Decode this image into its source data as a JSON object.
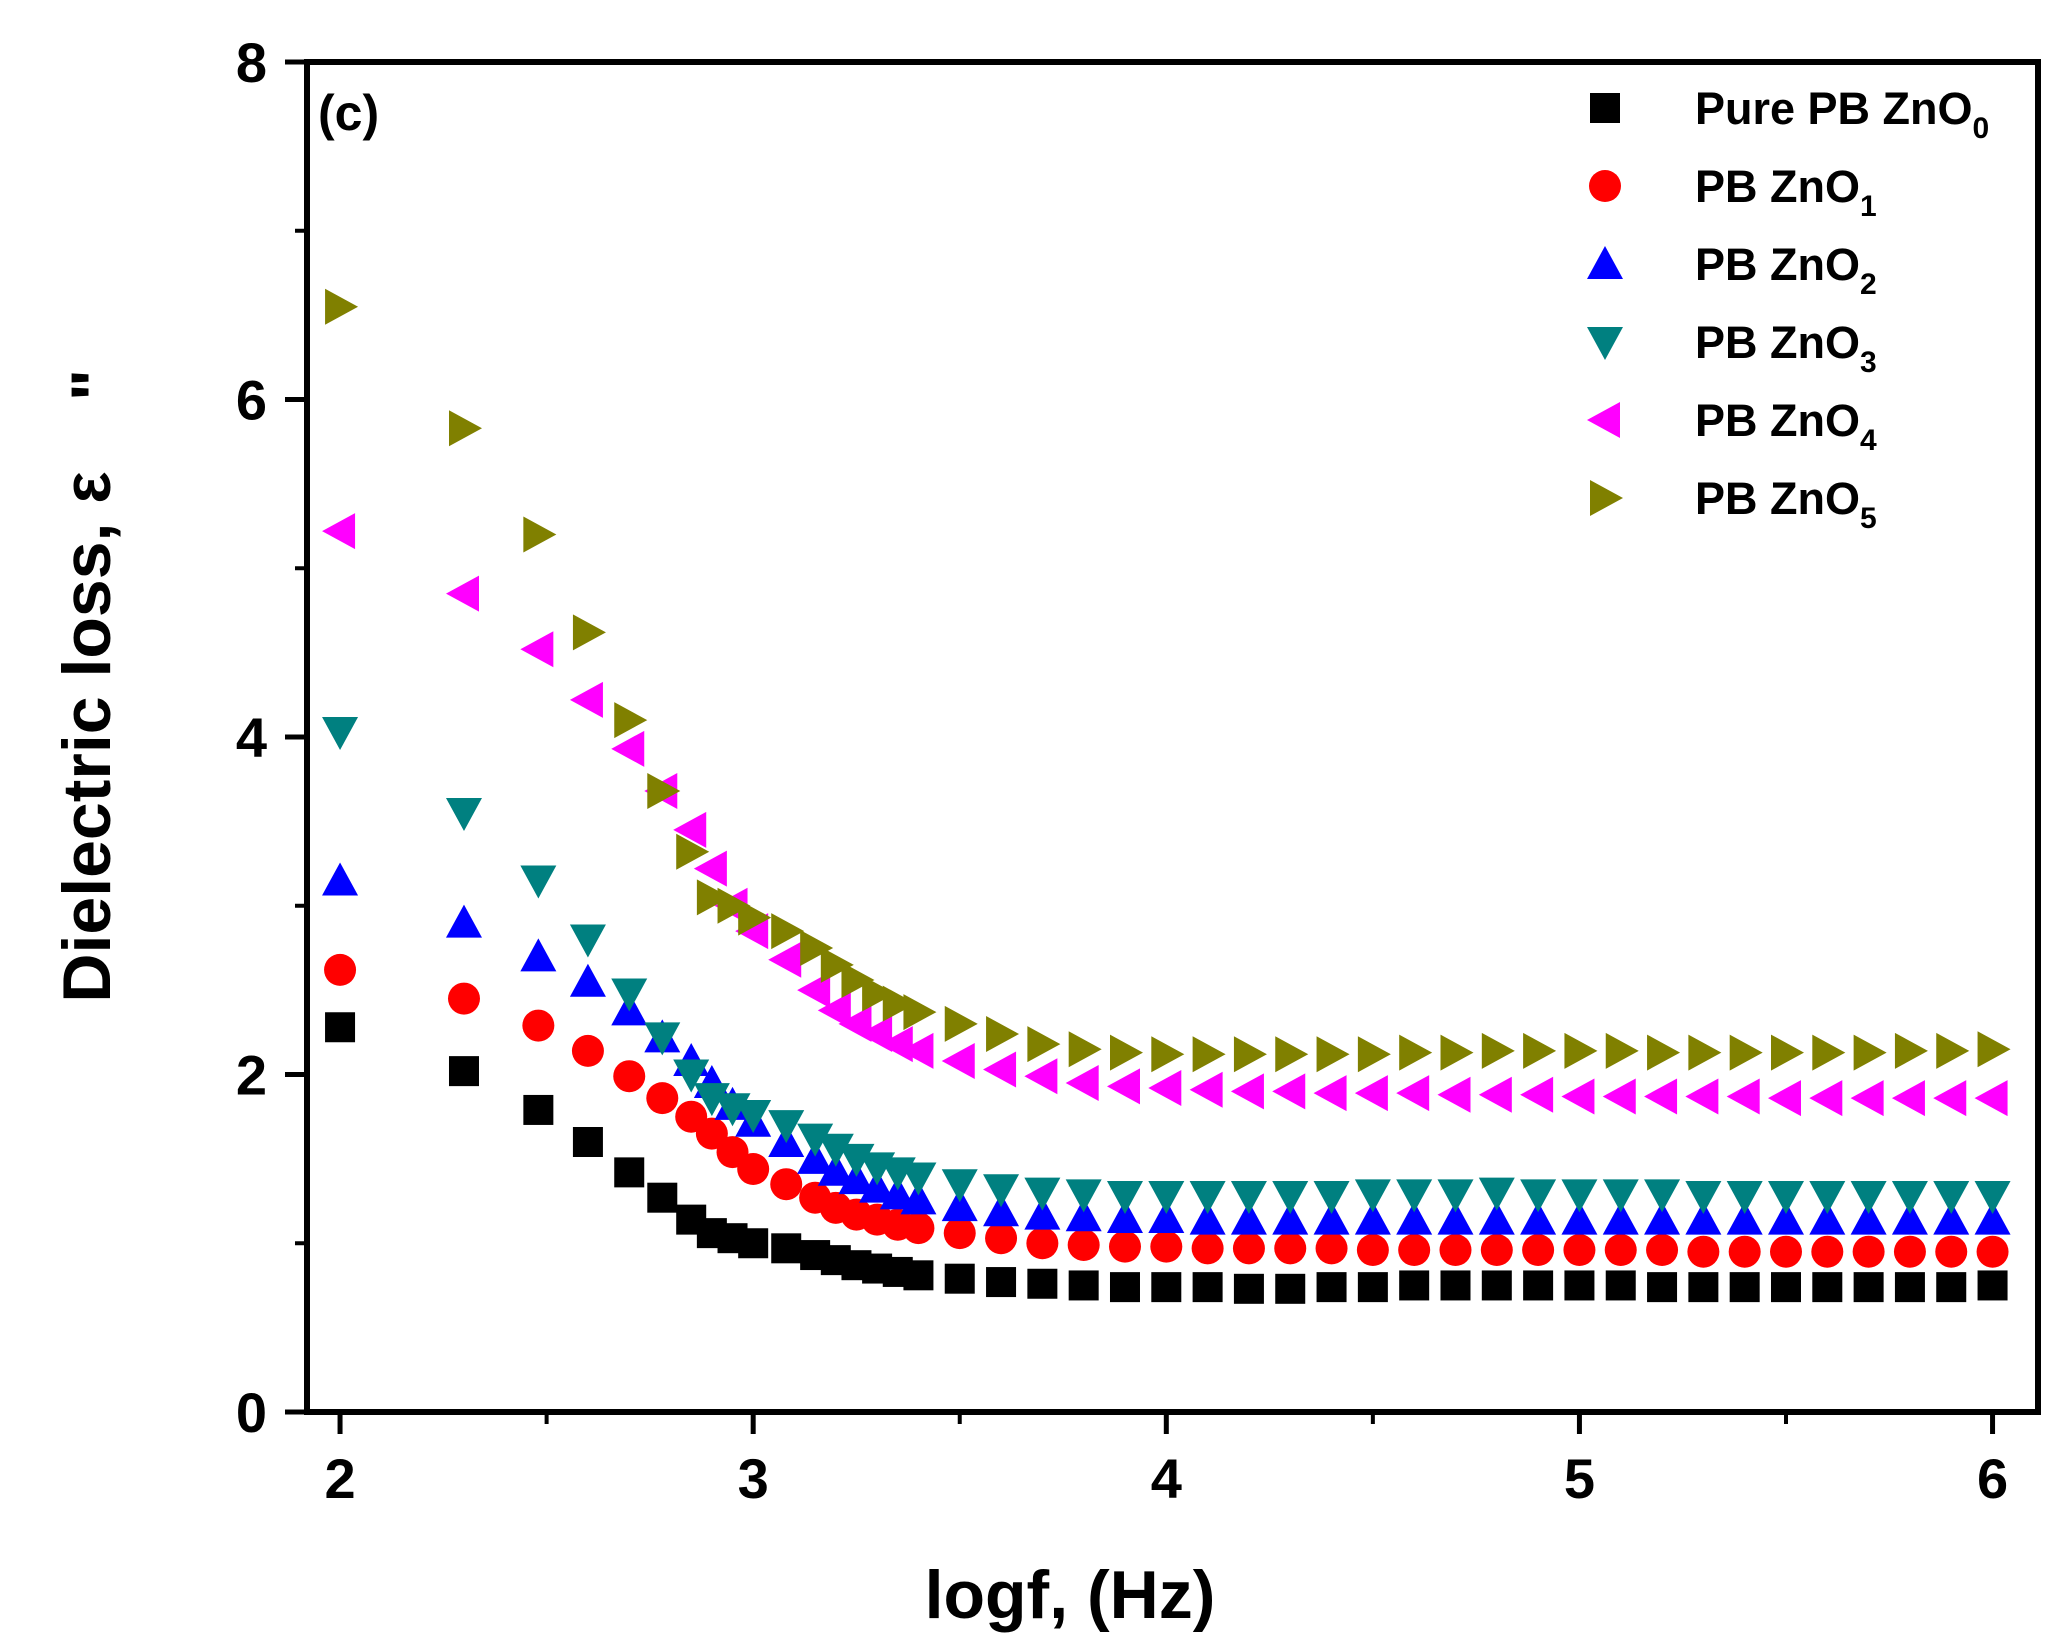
{
  "chart_data": {
    "type": "scatter",
    "panel_label": "(c)",
    "xlabel": "logf, (Hz)",
    "ylabel": "Dielectric loss, ε",
    "ylabel_mark": "\"",
    "xlim": [
      1.92,
      6.11
    ],
    "ylim": [
      0,
      8
    ],
    "x_ticks": [
      "2",
      "3",
      "4",
      "5",
      "6"
    ],
    "y_ticks": [
      "0",
      "2",
      "4",
      "6",
      "8"
    ],
    "legend_position": "top-right",
    "series": [
      {
        "name": "Pure PB ZnO",
        "sub": "0",
        "marker": "square",
        "color": "#000000",
        "x": [
          2.0,
          2.3,
          2.48,
          2.6,
          2.7,
          2.78,
          2.85,
          2.9,
          2.95,
          3.0,
          3.08,
          3.15,
          3.2,
          3.25,
          3.3,
          3.35,
          3.4,
          3.5,
          3.6,
          3.7,
          3.8,
          3.9,
          4.0,
          4.1,
          4.2,
          4.3,
          4.4,
          4.5,
          4.6,
          4.7,
          4.8,
          4.9,
          5.0,
          5.1,
          5.2,
          5.3,
          5.4,
          5.5,
          5.6,
          5.7,
          5.8,
          5.9,
          6.0
        ],
        "y": [
          2.28,
          2.02,
          1.79,
          1.6,
          1.42,
          1.27,
          1.14,
          1.06,
          1.03,
          1.0,
          0.97,
          0.93,
          0.9,
          0.87,
          0.85,
          0.83,
          0.81,
          0.79,
          0.77,
          0.76,
          0.75,
          0.74,
          0.74,
          0.74,
          0.73,
          0.73,
          0.74,
          0.74,
          0.75,
          0.75,
          0.75,
          0.75,
          0.75,
          0.75,
          0.74,
          0.74,
          0.74,
          0.74,
          0.74,
          0.74,
          0.74,
          0.74,
          0.75
        ]
      },
      {
        "name": "PB ZnO",
        "sub": "1",
        "marker": "circle",
        "color": "#ff0000",
        "x": [
          2.0,
          2.3,
          2.48,
          2.6,
          2.7,
          2.78,
          2.85,
          2.9,
          2.95,
          3.0,
          3.08,
          3.15,
          3.2,
          3.25,
          3.3,
          3.35,
          3.4,
          3.5,
          3.6,
          3.7,
          3.8,
          3.9,
          4.0,
          4.1,
          4.2,
          4.3,
          4.4,
          4.5,
          4.6,
          4.7,
          4.8,
          4.9,
          5.0,
          5.1,
          5.2,
          5.3,
          5.4,
          5.5,
          5.6,
          5.7,
          5.8,
          5.9,
          6.0
        ],
        "y": [
          2.62,
          2.45,
          2.29,
          2.14,
          1.99,
          1.86,
          1.75,
          1.65,
          1.54,
          1.44,
          1.35,
          1.27,
          1.21,
          1.17,
          1.14,
          1.11,
          1.09,
          1.06,
          1.03,
          1.0,
          0.99,
          0.98,
          0.98,
          0.97,
          0.97,
          0.97,
          0.97,
          0.96,
          0.96,
          0.96,
          0.96,
          0.96,
          0.96,
          0.96,
          0.96,
          0.95,
          0.95,
          0.95,
          0.95,
          0.95,
          0.95,
          0.95,
          0.95
        ]
      },
      {
        "name": "PB ZnO",
        "sub": "2",
        "marker": "triangle-up",
        "color": "#0000ff",
        "x": [
          2.0,
          2.3,
          2.48,
          2.6,
          2.7,
          2.78,
          2.85,
          2.9,
          2.95,
          3.0,
          3.08,
          3.15,
          3.2,
          3.25,
          3.3,
          3.35,
          3.4,
          3.5,
          3.6,
          3.7,
          3.8,
          3.9,
          4.0,
          4.1,
          4.2,
          4.3,
          4.4,
          4.5,
          4.6,
          4.7,
          4.8,
          4.9,
          5.0,
          5.1,
          5.2,
          5.3,
          5.4,
          5.5,
          5.6,
          5.7,
          5.8,
          5.9,
          6.0
        ],
        "y": [
          3.15,
          2.9,
          2.7,
          2.55,
          2.38,
          2.22,
          2.08,
          1.95,
          1.82,
          1.72,
          1.6,
          1.5,
          1.43,
          1.38,
          1.33,
          1.29,
          1.26,
          1.22,
          1.19,
          1.17,
          1.16,
          1.15,
          1.15,
          1.14,
          1.14,
          1.14,
          1.14,
          1.14,
          1.14,
          1.14,
          1.14,
          1.14,
          1.14,
          1.14,
          1.14,
          1.14,
          1.14,
          1.14,
          1.14,
          1.14,
          1.14,
          1.14,
          1.14
        ]
      },
      {
        "name": "PB ZnO",
        "sub": "3",
        "marker": "triangle-down",
        "color": "#008080",
        "x": [
          2.0,
          2.3,
          2.48,
          2.6,
          2.7,
          2.78,
          2.85,
          2.9,
          2.95,
          3.0,
          3.08,
          3.15,
          3.2,
          3.25,
          3.3,
          3.35,
          3.4,
          3.5,
          3.6,
          3.7,
          3.8,
          3.9,
          4.0,
          4.1,
          4.2,
          4.3,
          4.4,
          4.5,
          4.6,
          4.7,
          4.8,
          4.9,
          5.0,
          5.1,
          5.2,
          5.3,
          5.4,
          5.5,
          5.6,
          5.7,
          5.8,
          5.9,
          6.0
        ],
        "y": [
          4.03,
          3.55,
          3.15,
          2.8,
          2.48,
          2.22,
          2.0,
          1.86,
          1.8,
          1.76,
          1.7,
          1.62,
          1.56,
          1.5,
          1.45,
          1.42,
          1.39,
          1.35,
          1.32,
          1.3,
          1.29,
          1.28,
          1.28,
          1.28,
          1.28,
          1.28,
          1.28,
          1.29,
          1.29,
          1.29,
          1.3,
          1.29,
          1.29,
          1.29,
          1.29,
          1.28,
          1.28,
          1.28,
          1.28,
          1.28,
          1.28,
          1.28,
          1.28
        ]
      },
      {
        "name": "PB ZnO",
        "sub": "4",
        "marker": "triangle-left",
        "color": "#ff00ff",
        "x": [
          2.0,
          2.3,
          2.48,
          2.6,
          2.7,
          2.78,
          2.85,
          2.9,
          2.95,
          3.0,
          3.08,
          3.15,
          3.2,
          3.25,
          3.3,
          3.35,
          3.4,
          3.5,
          3.6,
          3.7,
          3.8,
          3.9,
          4.0,
          4.1,
          4.2,
          4.3,
          4.4,
          4.5,
          4.6,
          4.7,
          4.8,
          4.9,
          5.0,
          5.1,
          5.2,
          5.3,
          5.4,
          5.5,
          5.6,
          5.7,
          5.8,
          5.9,
          6.0
        ],
        "y": [
          5.22,
          4.85,
          4.52,
          4.22,
          3.93,
          3.68,
          3.45,
          3.22,
          3.0,
          2.85,
          2.68,
          2.5,
          2.38,
          2.3,
          2.24,
          2.18,
          2.14,
          2.08,
          2.03,
          1.99,
          1.95,
          1.93,
          1.92,
          1.91,
          1.9,
          1.9,
          1.89,
          1.89,
          1.89,
          1.88,
          1.88,
          1.88,
          1.87,
          1.87,
          1.87,
          1.87,
          1.87,
          1.86,
          1.86,
          1.86,
          1.86,
          1.86,
          1.86
        ]
      },
      {
        "name": "PB ZnO",
        "sub": "5",
        "marker": "triangle-right",
        "color": "#808000",
        "x": [
          2.0,
          2.3,
          2.48,
          2.6,
          2.7,
          2.78,
          2.85,
          2.9,
          2.95,
          3.0,
          3.08,
          3.15,
          3.2,
          3.25,
          3.3,
          3.35,
          3.4,
          3.5,
          3.6,
          3.7,
          3.8,
          3.9,
          4.0,
          4.1,
          4.2,
          4.3,
          4.4,
          4.5,
          4.6,
          4.7,
          4.8,
          4.9,
          5.0,
          5.1,
          5.2,
          5.3,
          5.4,
          5.5,
          5.6,
          5.7,
          5.8,
          5.9,
          6.0
        ],
        "y": [
          6.55,
          5.83,
          5.2,
          4.62,
          4.1,
          3.68,
          3.32,
          3.05,
          3.0,
          2.93,
          2.85,
          2.75,
          2.65,
          2.56,
          2.48,
          2.42,
          2.37,
          2.3,
          2.24,
          2.18,
          2.15,
          2.13,
          2.12,
          2.12,
          2.12,
          2.12,
          2.12,
          2.12,
          2.13,
          2.13,
          2.14,
          2.14,
          2.14,
          2.14,
          2.13,
          2.13,
          2.13,
          2.13,
          2.13,
          2.13,
          2.14,
          2.14,
          2.15
        ]
      }
    ]
  }
}
